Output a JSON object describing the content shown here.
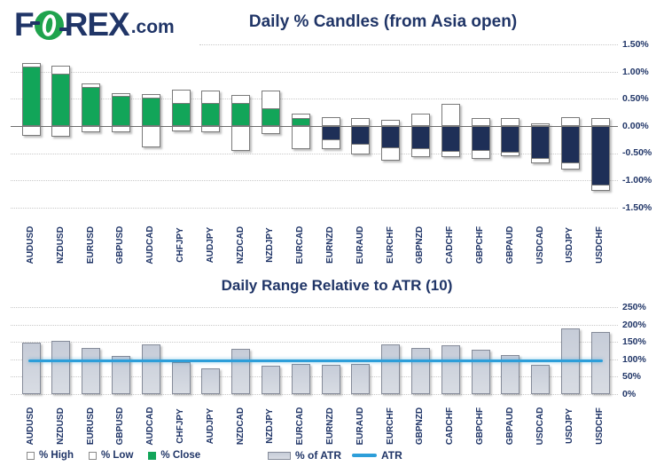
{
  "brand": {
    "f": "F",
    "rex": "REX",
    "dotcom": ".com"
  },
  "titles": {
    "candles": "Daily % Candles (from Asia open)",
    "atr": "Daily Range Relative to ATR (10)"
  },
  "colors": {
    "navy_text": "#203567",
    "candle_green": "#12a559",
    "candle_navy": "#1e2f57",
    "candle_border": "#7a7a7a",
    "atr_bar_fill": "#ccd1da",
    "atr_bar_border": "#858b99",
    "atr_line_blue": "#2d9ed9",
    "grid_gray": "#c9c9c9",
    "logo_green": "#1fa34d"
  },
  "legends": {
    "candles": [
      {
        "label": "% High",
        "swatch": "white-box"
      },
      {
        "label": "% Low",
        "swatch": "white-box"
      },
      {
        "label": "% Close",
        "swatch": "green-box"
      }
    ],
    "atr": [
      {
        "label": "% of ATR",
        "swatch": "gray-bar"
      },
      {
        "label": "ATR",
        "swatch": "blue-line"
      }
    ]
  },
  "chart_data": [
    {
      "type": "bar",
      "title": "Daily % Candles (from Asia open)",
      "categories": [
        "AUDUSD",
        "NZDUSD",
        "EURUSD",
        "GBPUSD",
        "AUDCAD",
        "CHFJPY",
        "AUDJPY",
        "NZDCAD",
        "NZDJPY",
        "EURCAD",
        "EURNZD",
        "EURAUD",
        "EURCHF",
        "GBPNZD",
        "CADCHF",
        "GBPCHF",
        "GBPAUD",
        "USDCAD",
        "USDJPY",
        "USDCHF"
      ],
      "series": [
        {
          "name": "% High",
          "values": [
            1.16,
            1.11,
            0.79,
            0.6,
            0.59,
            0.67,
            0.65,
            0.58,
            0.65,
            0.23,
            0.16,
            0.14,
            0.12,
            0.23,
            0.41,
            0.14,
            0.15,
            0.05,
            0.17,
            0.14
          ]
        },
        {
          "name": "% Low",
          "values": [
            -0.18,
            -0.19,
            -0.12,
            -0.11,
            -0.39,
            -0.1,
            -0.11,
            -0.46,
            -0.14,
            -0.42,
            -0.43,
            -0.53,
            -0.64,
            -0.57,
            -0.58,
            -0.6,
            -0.55,
            -0.69,
            -0.8,
            -1.2
          ]
        },
        {
          "name": "% Close",
          "values": [
            1.1,
            0.96,
            0.72,
            0.56,
            0.52,
            0.43,
            0.43,
            0.43,
            0.32,
            0.14,
            -0.26,
            -0.35,
            -0.41,
            -0.43,
            -0.47,
            -0.46,
            -0.49,
            -0.6,
            -0.68,
            -1.09
          ]
        }
      ],
      "ylim": [
        -1.5,
        1.5
      ],
      "y_ticks": [
        "1.50%",
        "1.00%",
        "0.50%",
        "0.00%",
        "-0.50%",
        "-1.00%",
        "-1.50%"
      ],
      "grid": true,
      "legend_position": "bottom"
    },
    {
      "type": "bar",
      "title": "Daily Range Relative to ATR (10)",
      "categories": [
        "AUDUSD",
        "NZDUSD",
        "EURUSD",
        "GBPUSD",
        "AUDCAD",
        "CHFJPY",
        "AUDJPY",
        "NZDCAD",
        "NZDJPY",
        "EURCAD",
        "EURNZD",
        "EURAUD",
        "EURCHF",
        "GBPNZD",
        "CADCHF",
        "GBPCHF",
        "GBPAUD",
        "USDCAD",
        "USDJPY",
        "USDCHF"
      ],
      "series": [
        {
          "name": "% of ATR",
          "kind": "bar",
          "values": [
            148,
            152,
            133,
            110,
            142,
            92,
            73,
            131,
            82,
            88,
            84,
            86,
            144,
            133,
            140,
            128,
            112,
            85,
            189,
            178
          ]
        },
        {
          "name": "ATR",
          "kind": "line",
          "constant": 95
        }
      ],
      "ylim": [
        0,
        250
      ],
      "y_ticks": [
        "250%",
        "200%",
        "150%",
        "100%",
        "50%",
        "0%"
      ],
      "grid": true,
      "legend_position": "bottom"
    }
  ]
}
